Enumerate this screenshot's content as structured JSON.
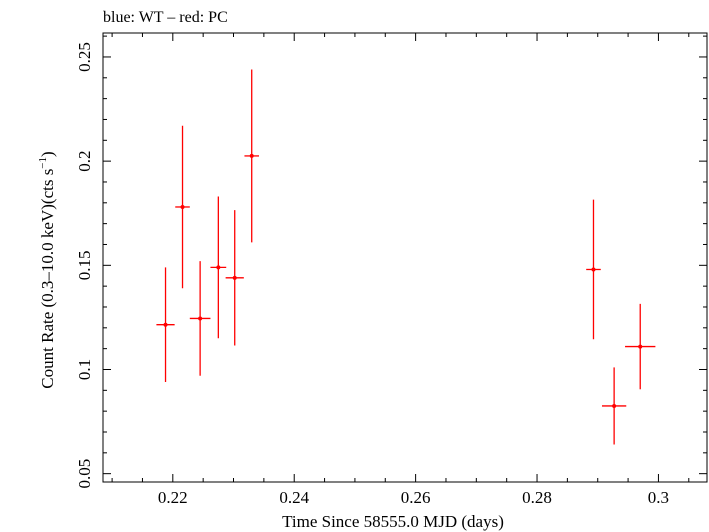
{
  "chart_data": {
    "type": "scatter",
    "title": "blue: WT – red: PC",
    "xlabel": "Time Since 58555.0 MJD (days)",
    "ylabel_main": "Count Rate (0.3–10.0 keV)(cts s",
    "ylabel_sup": "−1",
    "ylabel_close": ")",
    "xlim": [
      0.2085,
      0.308
    ],
    "ylim": [
      0.046,
      0.2615
    ],
    "xticks": [
      0.22,
      0.24,
      0.26,
      0.28,
      0.3
    ],
    "xtick_labels": [
      "0.22",
      "0.24",
      "0.26",
      "0.28",
      "0.3"
    ],
    "yticks": [
      0.05,
      0.1,
      0.15,
      0.2,
      0.25
    ],
    "ytick_labels": [
      "0.05",
      "0.1",
      "0.15",
      "0.2",
      "0.25"
    ],
    "grid": false,
    "series": [
      {
        "color": "#ff0000",
        "points": [
          {
            "x": 0.2188,
            "xerr": 0.0015,
            "y": 0.1215,
            "yerr_low": 0.0275,
            "yerr_high": 0.0275
          },
          {
            "x": 0.2216,
            "xerr": 0.0012,
            "y": 0.178,
            "yerr_low": 0.039,
            "yerr_high": 0.039
          },
          {
            "x": 0.2245,
            "xerr": 0.0017,
            "y": 0.1245,
            "yerr_low": 0.0275,
            "yerr_high": 0.0275
          },
          {
            "x": 0.2275,
            "xerr": 0.0013,
            "y": 0.149,
            "yerr_low": 0.034,
            "yerr_high": 0.034
          },
          {
            "x": 0.2302,
            "xerr": 0.0015,
            "y": 0.144,
            "yerr_low": 0.0325,
            "yerr_high": 0.0325
          },
          {
            "x": 0.233,
            "xerr": 0.0012,
            "y": 0.2025,
            "yerr_low": 0.0415,
            "yerr_high": 0.0415
          },
          {
            "x": 0.2893,
            "xerr": 0.0012,
            "y": 0.148,
            "yerr_low": 0.0335,
            "yerr_high": 0.0335
          },
          {
            "x": 0.2927,
            "xerr": 0.002,
            "y": 0.0825,
            "yerr_low": 0.0185,
            "yerr_high": 0.0185
          },
          {
            "x": 0.297,
            "xerr": 0.0025,
            "y": 0.111,
            "yerr_low": 0.0205,
            "yerr_high": 0.0205
          }
        ]
      }
    ]
  }
}
